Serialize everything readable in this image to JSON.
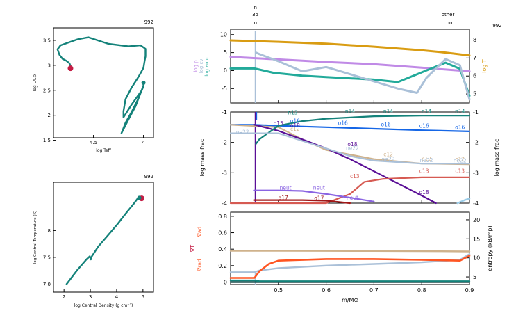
{
  "colors": {
    "teal": "#14827a",
    "magenta": "#c41d45",
    "lilac": "#c08ae6",
    "bluegray": "#aac0d8",
    "cyanteal": "#22aa9a",
    "gold": "#d99c12",
    "purple": "#5a0f96",
    "blue": "#1566e6",
    "tan": "#cfb28c",
    "salmon": "#d65a52",
    "violet": "#8a64e2",
    "darkred": "#a01818",
    "orange": "#ff5522",
    "lightblue": "#9ccde8",
    "darkgreen": "#205050"
  },
  "chart_data": [
    {
      "id": "hr",
      "type": "line",
      "title": "",
      "model_number": "992",
      "xlabel": "log Teff",
      "ylabel": "log L/L⊙",
      "xlim": [
        4.9,
        3.9
      ],
      "ylim": [
        1.55,
        3.75
      ],
      "xticks": [
        "4.5",
        "4"
      ],
      "yticks": [
        "1.5",
        "2",
        "2.5",
        "3",
        "3.5"
      ],
      "series": [
        {
          "name": "track",
          "x": [
            4.72,
            4.74,
            4.77,
            4.81,
            4.84,
            4.86,
            4.83,
            4.66,
            4.55,
            4.35,
            4.15,
            4.03,
            3.98,
            3.98,
            3.99,
            4.0,
            4.05,
            4.12,
            4.18,
            4.2,
            4.2,
            4.12,
            4.02,
            4.0,
            4.06,
            4.12,
            4.18,
            4.22,
            4.16,
            4.08,
            4.03,
            4.0,
            4.0,
            4.0
          ],
          "y": [
            2.94,
            3.04,
            3.09,
            3.13,
            3.21,
            3.32,
            3.4,
            3.52,
            3.56,
            3.43,
            3.38,
            3.4,
            3.33,
            3.18,
            3.07,
            2.95,
            2.77,
            2.55,
            2.32,
            2.08,
            1.96,
            2.21,
            2.49,
            2.58,
            2.3,
            2.06,
            1.85,
            1.64,
            1.88,
            2.18,
            2.44,
            2.6,
            2.66,
            2.65
          ]
        }
      ],
      "markers": [
        {
          "x": 4.73,
          "y": 2.94,
          "color": "magenta"
        },
        {
          "x": 4.0,
          "y": 2.65,
          "color": "teal"
        }
      ]
    },
    {
      "id": "center",
      "type": "line",
      "title": "",
      "model_number": "992",
      "xlabel": "log Central Density (g cm⁻³)",
      "ylabel": "log Central Temperature (K)",
      "xlim": [
        1.6,
        5.4
      ],
      "ylim": [
        6.85,
        8.9
      ],
      "xticks": [
        "2",
        "3",
        "4",
        "5"
      ],
      "yticks": [
        "7.5",
        "8"
      ],
      "series": [
        {
          "name": "track",
          "x": [
            2.1,
            2.5,
            2.85,
            2.98,
            3.02,
            3.06,
            3.3,
            3.65,
            4.0,
            4.35,
            4.65,
            4.8,
            4.86,
            4.95
          ],
          "y": [
            7.0,
            7.26,
            7.46,
            7.52,
            7.46,
            7.52,
            7.7,
            7.9,
            8.1,
            8.32,
            8.5,
            8.6,
            8.61,
            8.6
          ]
        }
      ],
      "markers": [
        {
          "x": 4.95,
          "y": 8.6,
          "color": "magenta"
        },
        {
          "x": 4.86,
          "y": 8.61,
          "color": "teal"
        }
      ]
    },
    {
      "id": "profile_top",
      "type": "line",
      "model_number": "992",
      "xlim": [
        0.4,
        0.9
      ],
      "ylim_left": [
        -9,
        11.5
      ],
      "ylim_right": [
        4.5,
        8.6
      ],
      "left_labels": [
        "log ρ",
        "log εν",
        "log εnuc"
      ],
      "right_label": "log T",
      "yticks_left": [
        "-5",
        "0",
        "5",
        "10"
      ],
      "yticks_right": [
        "5",
        "6",
        "7",
        "8"
      ],
      "top_labels": [
        "n",
        "3α",
        "o",
        "other",
        "cno"
      ],
      "top_label_x": [
        0.452,
        0.452,
        0.452,
        0.855,
        0.855
      ],
      "series": [
        {
          "name": "log T",
          "color": "gold",
          "axis": "right",
          "x": [
            0.4,
            0.5,
            0.6,
            0.7,
            0.8,
            0.85,
            0.9
          ],
          "y": [
            7.98,
            7.9,
            7.8,
            7.63,
            7.43,
            7.3,
            7.14
          ]
        },
        {
          "name": "log ρ",
          "color": "lilac",
          "axis": "left",
          "x": [
            0.4,
            0.5,
            0.6,
            0.7,
            0.8,
            0.9
          ],
          "y": [
            3.8,
            3.1,
            2.4,
            1.8,
            0.8,
            -0.2
          ]
        },
        {
          "name": "log εnuc",
          "color": "cyanteal",
          "axis": "left",
          "x": [
            0.4,
            0.45,
            0.49,
            0.55,
            0.6,
            0.7,
            0.75,
            0.8,
            0.85,
            0.88,
            0.9
          ],
          "y": [
            0.6,
            0.6,
            -0.6,
            -1.4,
            -1.8,
            -2.5,
            -3.2,
            -0.5,
            2.2,
            0.5,
            -7
          ]
        },
        {
          "name": "log εν",
          "color": "bluegray",
          "axis": "left",
          "x": [
            0.453,
            0.46,
            0.5,
            0.55,
            0.6,
            0.65,
            0.7,
            0.75,
            0.79,
            0.81,
            0.85,
            0.88,
            0.9
          ],
          "y": [
            5.0,
            4.6,
            2.6,
            -0.2,
            1.0,
            -1.0,
            -3.0,
            -5.0,
            -6.2,
            -2.0,
            3.2,
            1.5,
            -8
          ]
        }
      ]
    },
    {
      "id": "profile_mid",
      "type": "line",
      "xlim": [
        0.4,
        0.9
      ],
      "ylim": [
        -4,
        -1
      ],
      "ylabel_left": "log mass frac",
      "ylabel_right": "log mass frac",
      "yticks": [
        "-4",
        "-3",
        "-2",
        "-1"
      ],
      "series": [
        {
          "name": "o16",
          "color": "blue",
          "x": [
            0.4,
            0.45,
            0.5,
            0.6,
            0.7,
            0.8,
            0.9
          ],
          "y": [
            -1.42,
            -1.42,
            -1.45,
            -1.5,
            -1.55,
            -1.6,
            -1.64
          ]
        },
        {
          "name": "c12",
          "color": "tan",
          "x": [
            0.4,
            0.5,
            0.55,
            0.6,
            0.7,
            0.8,
            0.9
          ],
          "y": [
            -1.42,
            -1.5,
            -1.9,
            -2.25,
            -2.55,
            -2.7,
            -2.72
          ]
        },
        {
          "name": "o18",
          "color": "purple",
          "x": [
            0.45,
            0.5,
            0.55,
            0.6,
            0.65,
            0.7,
            0.75,
            0.8,
            0.83
          ],
          "y": [
            -1.42,
            -1.62,
            -1.9,
            -2.2,
            -2.55,
            -2.95,
            -3.35,
            -3.75,
            -4.0
          ]
        },
        {
          "name": "c13",
          "color": "salmon",
          "x": [
            0.4,
            0.45,
            0.6,
            0.65,
            0.68,
            0.72,
            0.8,
            0.9
          ],
          "y": [
            -4.0,
            -4.0,
            -4.0,
            -3.7,
            -3.3,
            -3.2,
            -3.15,
            -3.15
          ]
        },
        {
          "name": "n14",
          "color": "teal",
          "x": [
            0.453,
            0.46,
            0.5,
            0.55,
            0.6,
            0.7,
            0.8,
            0.9
          ],
          "y": [
            -2.05,
            -1.9,
            -1.45,
            -1.3,
            -1.22,
            -1.14,
            -1.12,
            -1.12
          ]
        },
        {
          "name": "ne22",
          "color": "bluegray",
          "x": [
            0.4,
            0.45,
            0.5,
            0.55,
            0.6,
            0.65,
            0.7,
            0.8,
            0.9
          ],
          "y": [
            -1.7,
            -1.7,
            -1.7,
            -1.95,
            -2.2,
            -2.45,
            -2.6,
            -2.7,
            -2.7
          ]
        },
        {
          "name": "neut",
          "color": "violet",
          "x": [
            0.45,
            0.5,
            0.55,
            0.6,
            0.65,
            0.7
          ],
          "y": [
            -3.58,
            -3.58,
            -3.6,
            -3.7,
            -3.82,
            -3.95
          ]
        },
        {
          "name": "o17",
          "color": "darkred",
          "x": [
            0.45,
            0.55,
            0.6,
            0.65
          ],
          "y": [
            -3.9,
            -3.9,
            -3.92,
            -4.0
          ]
        }
      ],
      "labels": [
        {
          "text": "ne22",
          "color": "bluegray",
          "x": 0.425,
          "y": -1.72
        },
        {
          "text": "o15",
          "color": "purple",
          "x": 0.5,
          "y": -1.44
        },
        {
          "text": "n13",
          "color": "teal",
          "x": 0.53,
          "y": -1.08
        },
        {
          "text": "n14",
          "color": "teal",
          "x": 0.65,
          "y": -1.04
        },
        {
          "text": "n14",
          "color": "teal",
          "x": 0.73,
          "y": -1.04
        },
        {
          "text": "n14",
          "color": "teal",
          "x": 0.81,
          "y": -1.04
        },
        {
          "text": "n14",
          "color": "teal",
          "x": 0.88,
          "y": -1.04
        },
        {
          "text": "o16",
          "color": "blue",
          "x": 0.535,
          "y": -1.35
        },
        {
          "text": "o16",
          "color": "blue",
          "x": 0.635,
          "y": -1.42
        },
        {
          "text": "o16",
          "color": "blue",
          "x": 0.725,
          "y": -1.47
        },
        {
          "text": "o16",
          "color": "blue",
          "x": 0.805,
          "y": -1.52
        },
        {
          "text": "o16",
          "color": "blue",
          "x": 0.88,
          "y": -1.56
        },
        {
          "text": "o18",
          "color": "purple",
          "x": 0.535,
          "y": -1.5
        },
        {
          "text": "c12",
          "color": "tan",
          "x": 0.535,
          "y": -1.62
        },
        {
          "text": "o18",
          "color": "purple",
          "x": 0.655,
          "y": -2.12
        },
        {
          "text": "ne22",
          "color": "bluegray",
          "x": 0.655,
          "y": -2.25
        },
        {
          "text": "c12",
          "color": "tan",
          "x": 0.73,
          "y": -2.45
        },
        {
          "text": "ne22",
          "color": "bluegray",
          "x": 0.73,
          "y": -2.62
        },
        {
          "text": "c12",
          "color": "tan",
          "x": 0.81,
          "y": -2.6
        },
        {
          "text": "ne22",
          "color": "bluegray",
          "x": 0.81,
          "y": -2.65
        },
        {
          "text": "c12",
          "color": "tan",
          "x": 0.88,
          "y": -2.62
        },
        {
          "text": "ne22",
          "color": "bluegray",
          "x": 0.88,
          "y": -2.66
        },
        {
          "text": "c13",
          "color": "salmon",
          "x": 0.66,
          "y": -3.18
        },
        {
          "text": "c13",
          "color": "salmon",
          "x": 0.805,
          "y": -3.0
        },
        {
          "text": "c13",
          "color": "salmon",
          "x": 0.88,
          "y": -3.0
        },
        {
          "text": "neut",
          "color": "violet",
          "x": 0.515,
          "y": -3.55
        },
        {
          "text": "neut",
          "color": "violet",
          "x": 0.585,
          "y": -3.55
        },
        {
          "text": "neut",
          "color": "violet",
          "x": 0.655,
          "y": -3.88
        },
        {
          "text": "o17",
          "color": "darkred",
          "x": 0.51,
          "y": -3.88
        },
        {
          "text": "o17",
          "color": "darkred",
          "x": 0.585,
          "y": -3.9
        },
        {
          "text": "o18",
          "color": "purple",
          "x": 0.805,
          "y": -3.7
        }
      ]
    },
    {
      "id": "profile_bot",
      "type": "line",
      "xlim": [
        0.4,
        0.9
      ],
      "ylim_left": [
        -0.03,
        0.85
      ],
      "ylim_right": [
        3,
        22
      ],
      "xlabel": "m/M⊙",
      "xticks": [
        "0.5",
        "0.6",
        "0.7",
        "0.8",
        "0.9"
      ],
      "yticks_left": [
        "0",
        "0.2",
        "0.4",
        "0.6",
        "0.8"
      ],
      "yticks_right": [
        "5",
        "10",
        "15",
        "20"
      ],
      "left_labels": [
        "∇ad",
        "∇T",
        "∇rad"
      ],
      "right_label": "entropy (kB/mp)",
      "series": [
        {
          "name": "∇ad",
          "color": "tan",
          "axis": "left",
          "x": [
            0.4,
            0.5,
            0.6,
            0.7,
            0.8,
            0.9
          ],
          "y": [
            0.38,
            0.38,
            0.379,
            0.378,
            0.376,
            0.372
          ]
        },
        {
          "name": "entropy",
          "color": "bluegray",
          "axis": "left",
          "x": [
            0.4,
            0.45,
            0.46,
            0.5,
            0.6,
            0.7,
            0.8,
            0.88,
            0.9
          ],
          "y": [
            0.12,
            0.12,
            0.14,
            0.17,
            0.2,
            0.22,
            0.24,
            0.27,
            0.34
          ]
        },
        {
          "name": "∇rad",
          "color": "orange",
          "axis": "left",
          "x": [
            0.4,
            0.45,
            0.46,
            0.48,
            0.5,
            0.6,
            0.7,
            0.8,
            0.88,
            0.9
          ],
          "y": [
            0.05,
            0.05,
            0.13,
            0.22,
            0.26,
            0.28,
            0.28,
            0.27,
            0.26,
            0.32
          ]
        },
        {
          "name": "∇T",
          "color": "darkgreen",
          "axis": "left",
          "x": [
            0.4,
            0.9
          ],
          "y": [
            0.0,
            0.0
          ]
        },
        {
          "name": "base",
          "color": "teal",
          "axis": "left",
          "x": [
            0.4,
            0.45,
            0.46,
            0.9
          ],
          "y": [
            0.02,
            0.02,
            0.01,
            0.01
          ]
        }
      ]
    }
  ]
}
